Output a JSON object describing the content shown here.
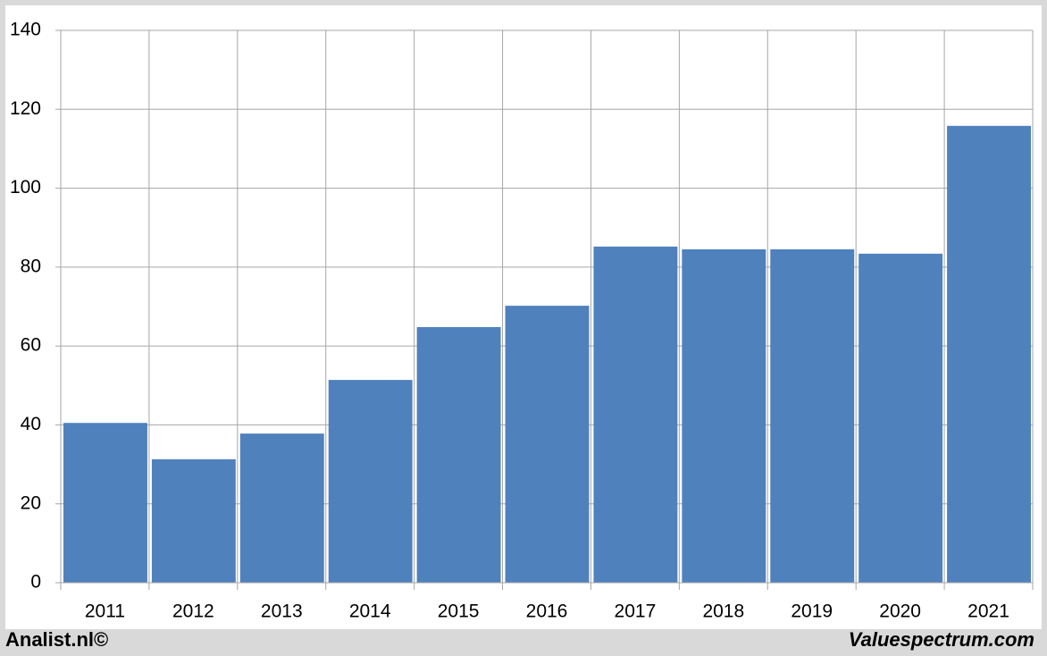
{
  "chart_data": {
    "type": "bar",
    "categories": [
      "2011",
      "2012",
      "2013",
      "2014",
      "2015",
      "2016",
      "2017",
      "2018",
      "2019",
      "2020",
      "2021"
    ],
    "values": [
      40.5,
      31.3,
      37.8,
      51.4,
      64.8,
      70.2,
      85.2,
      84.5,
      84.5,
      83.4,
      115.8
    ],
    "color": "#4f81bd",
    "ylim": [
      0,
      140
    ],
    "yticks": [
      0,
      20,
      40,
      60,
      80,
      100,
      120,
      140
    ],
    "grid": true,
    "footer_left": "Analist.nl©",
    "footer_right": "Valuespectrum.com"
  }
}
